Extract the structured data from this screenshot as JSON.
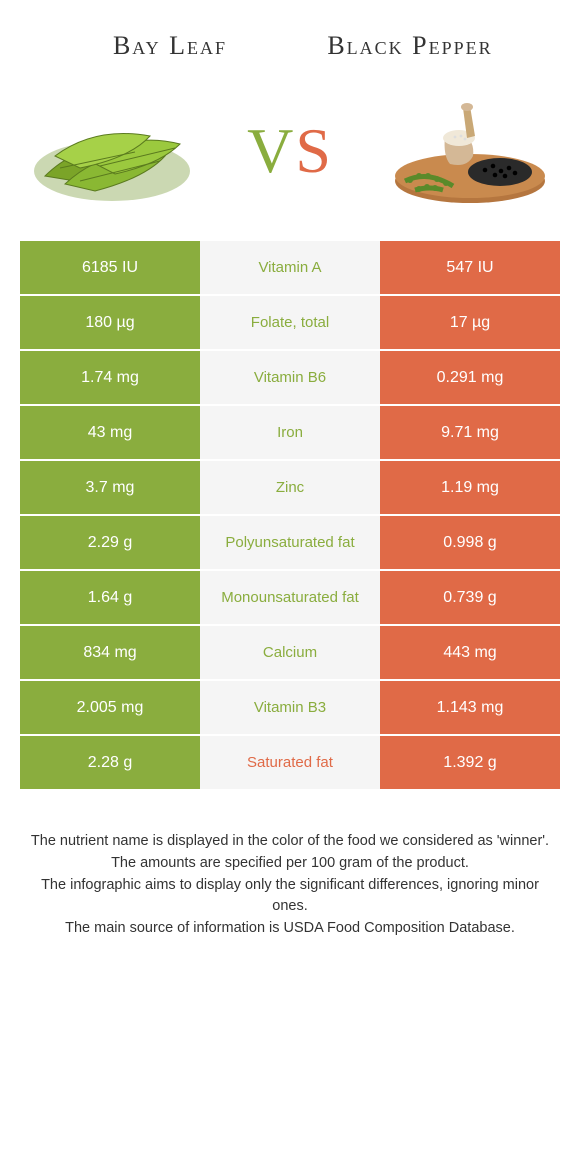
{
  "colors": {
    "green": "#8aad3e",
    "orange": "#e06a47",
    "mid_bg": "#f5f5f5",
    "text_white": "#ffffff",
    "mid_text_green": "#8aad3e",
    "mid_text_orange": "#e06a47"
  },
  "header": {
    "left_title": "Bay Leaf",
    "right_title": "Black Pepper"
  },
  "vs": {
    "v": "V",
    "s": "S"
  },
  "rows": [
    {
      "left": "6185 IU",
      "mid": "Vitamin A",
      "right": "547 IU",
      "winner": "left"
    },
    {
      "left": "180 µg",
      "mid": "Folate, total",
      "right": "17 µg",
      "winner": "left"
    },
    {
      "left": "1.74 mg",
      "mid": "Vitamin B6",
      "right": "0.291 mg",
      "winner": "left"
    },
    {
      "left": "43 mg",
      "mid": "Iron",
      "right": "9.71 mg",
      "winner": "left"
    },
    {
      "left": "3.7 mg",
      "mid": "Zinc",
      "right": "1.19 mg",
      "winner": "left"
    },
    {
      "left": "2.29 g",
      "mid": "Polyunsaturated fat",
      "right": "0.998 g",
      "winner": "left"
    },
    {
      "left": "1.64 g",
      "mid": "Monounsaturated fat",
      "right": "0.739 g",
      "winner": "left"
    },
    {
      "left": "834 mg",
      "mid": "Calcium",
      "right": "443 mg",
      "winner": "left"
    },
    {
      "left": "2.005 mg",
      "mid": "Vitamin B3",
      "right": "1.143 mg",
      "winner": "left"
    },
    {
      "left": "2.28 g",
      "mid": "Saturated fat",
      "right": "1.392 g",
      "winner": "right"
    }
  ],
  "footer": {
    "line1": "The nutrient name is displayed in the color of the food we considered as 'winner'.",
    "line2": "The amounts are specified per 100 gram of the product.",
    "line3": "The infographic aims to display only the significant differences, ignoring minor ones.",
    "line4": "The main source of information is USDA Food Composition Database."
  }
}
